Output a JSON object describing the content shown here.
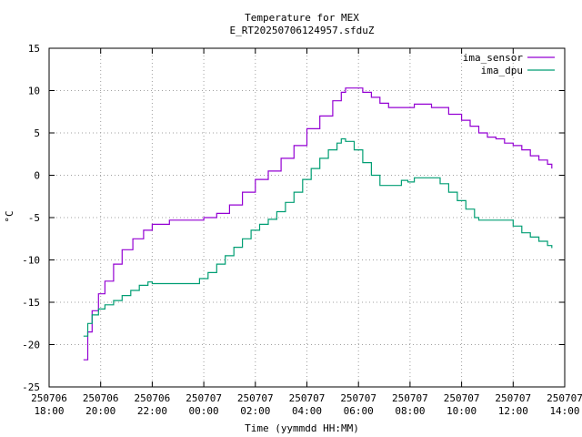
{
  "chart_data": {
    "type": "line",
    "title": "Temperature for MEX",
    "subtitle": "E_RT20250706124957.sfduZ",
    "xlabel": "Time (yymmdd HH:MM)",
    "ylabel": "°C",
    "ylim": [
      -25,
      15
    ],
    "xlim": [
      "2025-07-06 18:00",
      "2025-07-07 14:00"
    ],
    "grid": true,
    "legend_position": "top-right",
    "y_ticks": [
      -25,
      -20,
      -15,
      -10,
      -5,
      0,
      5,
      10,
      15
    ],
    "x_ticks": [
      {
        "date": "250706",
        "time": "18:00"
      },
      {
        "date": "250706",
        "time": "20:00"
      },
      {
        "date": "250706",
        "time": "22:00"
      },
      {
        "date": "250707",
        "time": "00:00"
      },
      {
        "date": "250707",
        "time": "02:00"
      },
      {
        "date": "250707",
        "time": "04:00"
      },
      {
        "date": "250707",
        "time": "06:00"
      },
      {
        "date": "250707",
        "time": "08:00"
      },
      {
        "date": "250707",
        "time": "10:00"
      },
      {
        "date": "250707",
        "time": "12:00"
      },
      {
        "date": "250707",
        "time": "14:00"
      }
    ],
    "series": [
      {
        "name": "ima_sensor",
        "color": "#9400d3",
        "points": [
          [
            "2025-07-06 19:20",
            -21.8
          ],
          [
            "2025-07-06 19:30",
            -18.5
          ],
          [
            "2025-07-06 19:40",
            -16.0
          ],
          [
            "2025-07-06 19:55",
            -14.0
          ],
          [
            "2025-07-06 20:10",
            -12.5
          ],
          [
            "2025-07-06 20:30",
            -10.5
          ],
          [
            "2025-07-06 20:50",
            -8.8
          ],
          [
            "2025-07-06 21:15",
            -7.5
          ],
          [
            "2025-07-06 21:40",
            -6.5
          ],
          [
            "2025-07-06 22:00",
            -5.8
          ],
          [
            "2025-07-06 22:40",
            -5.3
          ],
          [
            "2025-07-06 23:50",
            -5.3
          ],
          [
            "2025-07-07 00:00",
            -5.0
          ],
          [
            "2025-07-07 00:30",
            -4.5
          ],
          [
            "2025-07-07 01:00",
            -3.5
          ],
          [
            "2025-07-07 01:30",
            -2.0
          ],
          [
            "2025-07-07 02:00",
            -0.5
          ],
          [
            "2025-07-07 02:30",
            0.5
          ],
          [
            "2025-07-07 03:00",
            2.0
          ],
          [
            "2025-07-07 03:30",
            3.5
          ],
          [
            "2025-07-07 04:00",
            5.5
          ],
          [
            "2025-07-07 04:30",
            7.0
          ],
          [
            "2025-07-07 05:00",
            8.8
          ],
          [
            "2025-07-07 05:20",
            9.8
          ],
          [
            "2025-07-07 05:30",
            10.3
          ],
          [
            "2025-07-07 05:55",
            10.3
          ],
          [
            "2025-07-07 06:10",
            9.8
          ],
          [
            "2025-07-07 06:30",
            9.2
          ],
          [
            "2025-07-07 06:50",
            8.5
          ],
          [
            "2025-07-07 07:10",
            8.0
          ],
          [
            "2025-07-07 08:00",
            8.0
          ],
          [
            "2025-07-07 08:10",
            8.4
          ],
          [
            "2025-07-07 08:30",
            8.4
          ],
          [
            "2025-07-07 08:50",
            8.0
          ],
          [
            "2025-07-07 09:30",
            7.2
          ],
          [
            "2025-07-07 10:00",
            6.5
          ],
          [
            "2025-07-07 10:20",
            5.8
          ],
          [
            "2025-07-07 10:40",
            5.0
          ],
          [
            "2025-07-07 11:00",
            4.5
          ],
          [
            "2025-07-07 11:20",
            4.3
          ],
          [
            "2025-07-07 11:40",
            3.8
          ],
          [
            "2025-07-07 12:00",
            3.5
          ],
          [
            "2025-07-07 12:20",
            3.0
          ],
          [
            "2025-07-07 12:40",
            2.3
          ],
          [
            "2025-07-07 13:00",
            1.8
          ],
          [
            "2025-07-07 13:20",
            1.3
          ],
          [
            "2025-07-07 13:30",
            0.8
          ]
        ]
      },
      {
        "name": "ima_dpu",
        "color": "#009e73",
        "points": [
          [
            "2025-07-06 19:20",
            -19.0
          ],
          [
            "2025-07-06 19:30",
            -17.5
          ],
          [
            "2025-07-06 19:40",
            -16.5
          ],
          [
            "2025-07-06 19:55",
            -15.8
          ],
          [
            "2025-07-06 20:10",
            -15.3
          ],
          [
            "2025-07-06 20:30",
            -14.8
          ],
          [
            "2025-07-06 20:50",
            -14.2
          ],
          [
            "2025-07-06 21:10",
            -13.6
          ],
          [
            "2025-07-06 21:30",
            -13.0
          ],
          [
            "2025-07-06 21:50",
            -12.6
          ],
          [
            "2025-07-06 22:00",
            -12.8
          ],
          [
            "2025-07-06 23:40",
            -12.8
          ],
          [
            "2025-07-06 23:50",
            -12.2
          ],
          [
            "2025-07-07 00:10",
            -11.5
          ],
          [
            "2025-07-07 00:30",
            -10.5
          ],
          [
            "2025-07-07 00:50",
            -9.5
          ],
          [
            "2025-07-07 01:10",
            -8.5
          ],
          [
            "2025-07-07 01:30",
            -7.5
          ],
          [
            "2025-07-07 01:50",
            -6.5
          ],
          [
            "2025-07-07 02:10",
            -5.8
          ],
          [
            "2025-07-07 02:30",
            -5.2
          ],
          [
            "2025-07-07 02:50",
            -4.3
          ],
          [
            "2025-07-07 03:10",
            -3.2
          ],
          [
            "2025-07-07 03:30",
            -2.0
          ],
          [
            "2025-07-07 03:50",
            -0.5
          ],
          [
            "2025-07-07 04:10",
            0.8
          ],
          [
            "2025-07-07 04:30",
            2.0
          ],
          [
            "2025-07-07 04:50",
            3.0
          ],
          [
            "2025-07-07 05:10",
            3.8
          ],
          [
            "2025-07-07 05:20",
            4.3
          ],
          [
            "2025-07-07 05:30",
            4.0
          ],
          [
            "2025-07-07 05:50",
            3.0
          ],
          [
            "2025-07-07 06:10",
            1.5
          ],
          [
            "2025-07-07 06:30",
            0.0
          ],
          [
            "2025-07-07 06:50",
            -1.2
          ],
          [
            "2025-07-07 07:30",
            -1.2
          ],
          [
            "2025-07-07 07:40",
            -0.6
          ],
          [
            "2025-07-07 07:55",
            -0.8
          ],
          [
            "2025-07-07 08:10",
            -0.3
          ],
          [
            "2025-07-07 08:50",
            -0.3
          ],
          [
            "2025-07-07 09:10",
            -1.0
          ],
          [
            "2025-07-07 09:30",
            -2.0
          ],
          [
            "2025-07-07 09:50",
            -3.0
          ],
          [
            "2025-07-07 10:10",
            -4.0
          ],
          [
            "2025-07-07 10:30",
            -5.0
          ],
          [
            "2025-07-07 10:40",
            -5.3
          ],
          [
            "2025-07-07 11:40",
            -5.3
          ],
          [
            "2025-07-07 12:00",
            -6.0
          ],
          [
            "2025-07-07 12:20",
            -6.8
          ],
          [
            "2025-07-07 12:40",
            -7.3
          ],
          [
            "2025-07-07 13:00",
            -7.8
          ],
          [
            "2025-07-07 13:20",
            -8.3
          ],
          [
            "2025-07-07 13:30",
            -8.6
          ]
        ]
      }
    ]
  }
}
